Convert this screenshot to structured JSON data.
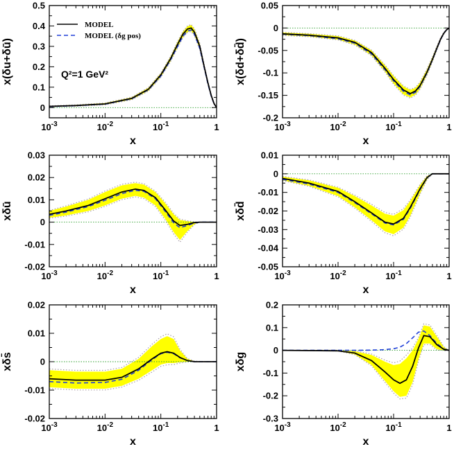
{
  "legend": {
    "model_label": "MODEL",
    "model_dgpos_label": "MODEL (δg pos)"
  },
  "annotation": "Q²=1 GeV²",
  "colors": {
    "band": "#ffff00",
    "model": "#000000",
    "model_dgpos": "#1f3fd8",
    "zero_line": "#2a9d2a",
    "band_edge": "#a59aa5"
  },
  "chart_data": [
    {
      "type": "line",
      "xlabel": "x",
      "ylabel": "x(δu+δū)",
      "xscale": "log",
      "xlim": [
        0.001,
        1
      ],
      "ylim": [
        -0.05,
        0.5
      ],
      "yticks": [
        "-0.1",
        "0",
        "0.1",
        "0.2",
        "0.3",
        "0.4",
        "0.5"
      ],
      "x": [
        0.001,
        0.003,
        0.01,
        0.03,
        0.06,
        0.1,
        0.15,
        0.2,
        0.25,
        0.3,
        0.35,
        0.4,
        0.5,
        0.6,
        0.7,
        0.8,
        0.9,
        1.0
      ],
      "series": [
        {
          "name": "MODEL",
          "values": [
            0.006,
            0.01,
            0.018,
            0.045,
            0.09,
            0.16,
            0.24,
            0.31,
            0.36,
            0.385,
            0.39,
            0.37,
            0.3,
            0.2,
            0.12,
            0.06,
            0.02,
            0.0
          ]
        },
        {
          "name": "MODEL (δg pos)",
          "values": [
            0.005,
            0.009,
            0.017,
            0.043,
            0.087,
            0.155,
            0.235,
            0.3,
            0.35,
            0.375,
            0.38,
            0.36,
            0.29,
            0.195,
            0.115,
            0.057,
            0.019,
            0.0
          ]
        }
      ],
      "band": {
        "upper": [
          0.008,
          0.013,
          0.022,
          0.05,
          0.097,
          0.168,
          0.25,
          0.322,
          0.372,
          0.398,
          0.405,
          0.385,
          0.313,
          0.21,
          0.126,
          0.064,
          0.022,
          0.0
        ],
        "lower": [
          0.004,
          0.007,
          0.014,
          0.039,
          0.082,
          0.15,
          0.228,
          0.295,
          0.345,
          0.37,
          0.375,
          0.355,
          0.286,
          0.19,
          0.113,
          0.056,
          0.018,
          0.0
        ]
      }
    },
    {
      "type": "line",
      "xlabel": "x",
      "ylabel": "x(δd+δd̄)",
      "xscale": "log",
      "xlim": [
        0.001,
        1
      ],
      "ylim": [
        -0.2,
        0.05
      ],
      "yticks": [
        "-0.2",
        "-0.15",
        "-0.1",
        "-0.05",
        "0",
        "0.05"
      ],
      "x": [
        0.001,
        0.003,
        0.01,
        0.02,
        0.04,
        0.07,
        0.1,
        0.15,
        0.2,
        0.25,
        0.3,
        0.4,
        0.5,
        0.6,
        0.7,
        0.8,
        0.9,
        1.0
      ],
      "series": [
        {
          "name": "MODEL",
          "values": [
            -0.013,
            -0.016,
            -0.022,
            -0.032,
            -0.055,
            -0.09,
            -0.115,
            -0.138,
            -0.146,
            -0.14,
            -0.128,
            -0.098,
            -0.07,
            -0.045,
            -0.025,
            -0.012,
            -0.004,
            0.0
          ]
        },
        {
          "name": "MODEL (δg pos)",
          "values": [
            -0.014,
            -0.017,
            -0.024,
            -0.034,
            -0.058,
            -0.093,
            -0.118,
            -0.141,
            -0.149,
            -0.143,
            -0.13,
            -0.1,
            -0.071,
            -0.046,
            -0.026,
            -0.012,
            -0.004,
            0.0
          ]
        }
      ],
      "band": {
        "upper": [
          -0.01,
          -0.013,
          -0.018,
          -0.028,
          -0.05,
          -0.083,
          -0.107,
          -0.13,
          -0.138,
          -0.133,
          -0.121,
          -0.092,
          -0.065,
          -0.041,
          -0.022,
          -0.01,
          -0.003,
          0.0
        ],
        "lower": [
          -0.016,
          -0.019,
          -0.026,
          -0.037,
          -0.061,
          -0.097,
          -0.124,
          -0.148,
          -0.155,
          -0.148,
          -0.135,
          -0.104,
          -0.075,
          -0.049,
          -0.028,
          -0.014,
          -0.005,
          0.0
        ]
      }
    },
    {
      "type": "line",
      "xlabel": "x",
      "ylabel": "xδū",
      "xscale": "log",
      "xlim": [
        0.001,
        1
      ],
      "ylim": [
        -0.02,
        0.03
      ],
      "yticks": [
        "-0.02",
        "-0.01",
        "0",
        "0.01",
        "0.02",
        "0.03"
      ],
      "x": [
        0.001,
        0.002,
        0.005,
        0.01,
        0.02,
        0.035,
        0.05,
        0.08,
        0.12,
        0.17,
        0.22,
        0.3,
        0.4,
        0.5,
        0.7,
        1.0
      ],
      "series": [
        {
          "name": "MODEL",
          "values": [
            0.0035,
            0.005,
            0.0075,
            0.0105,
            0.0135,
            0.0148,
            0.0142,
            0.011,
            0.0055,
            0.0005,
            -0.0015,
            -0.001,
            -0.0002,
            0.0,
            0.0,
            0.0
          ]
        },
        {
          "name": "MODEL (δg pos)",
          "values": [
            0.003,
            0.0045,
            0.007,
            0.0098,
            0.0128,
            0.0143,
            0.0138,
            0.0105,
            0.0048,
            -0.0003,
            -0.0025,
            -0.0015,
            -0.0004,
            0.0,
            0.0,
            0.0
          ]
        }
      ],
      "band": {
        "upper": [
          0.005,
          0.007,
          0.01,
          0.0135,
          0.0165,
          0.0175,
          0.0168,
          0.0135,
          0.0085,
          0.0035,
          0.001,
          0.0004,
          0.0001,
          0.0,
          0.0,
          0.0
        ],
        "lower": [
          0.002,
          0.003,
          0.005,
          0.0075,
          0.0105,
          0.0118,
          0.011,
          0.0075,
          0.0015,
          -0.0045,
          -0.008,
          -0.004,
          -0.001,
          0.0,
          0.0,
          0.0
        ]
      }
    },
    {
      "type": "line",
      "xlabel": "x",
      "ylabel": "xδd̄",
      "xscale": "log",
      "xlim": [
        0.001,
        1
      ],
      "ylim": [
        -0.05,
        0.01
      ],
      "yticks": [
        "-0.05",
        "-0.04",
        "-0.03",
        "-0.02",
        "-0.01",
        "0",
        "0.01"
      ],
      "x": [
        0.001,
        0.003,
        0.01,
        0.02,
        0.04,
        0.07,
        0.1,
        0.15,
        0.2,
        0.3,
        0.4,
        0.5,
        0.7,
        1.0
      ],
      "series": [
        {
          "name": "MODEL",
          "values": [
            -0.0025,
            -0.005,
            -0.0095,
            -0.015,
            -0.021,
            -0.026,
            -0.027,
            -0.024,
            -0.018,
            -0.008,
            -0.002,
            0.0,
            0.0,
            0.0
          ]
        },
        {
          "name": "MODEL (δg pos)",
          "values": [
            -0.003,
            -0.0055,
            -0.01,
            -0.0155,
            -0.0215,
            -0.0265,
            -0.0275,
            -0.0245,
            -0.0185,
            -0.0085,
            -0.0022,
            0.0,
            0.0,
            0.0
          ]
        }
      ],
      "band": {
        "upper": [
          -0.0015,
          -0.0035,
          -0.0075,
          -0.012,
          -0.017,
          -0.0215,
          -0.0225,
          -0.0195,
          -0.0145,
          -0.006,
          -0.0012,
          0.0,
          0.0,
          0.0
        ],
        "lower": [
          -0.0035,
          -0.0065,
          -0.012,
          -0.018,
          -0.025,
          -0.031,
          -0.0325,
          -0.029,
          -0.0225,
          -0.0105,
          -0.003,
          0.0,
          0.0,
          0.0
        ]
      }
    },
    {
      "type": "line",
      "xlabel": "x",
      "ylabel": "xδs̄",
      "xscale": "log",
      "xlim": [
        0.001,
        1
      ],
      "ylim": [
        -0.02,
        0.02
      ],
      "yticks": [
        "-0.02",
        "-0.01",
        "0",
        "0.01",
        "0.02"
      ],
      "x": [
        0.001,
        0.003,
        0.01,
        0.02,
        0.04,
        0.07,
        0.1,
        0.13,
        0.17,
        0.22,
        0.3,
        0.4,
        0.6,
        1.0
      ],
      "series": [
        {
          "name": "MODEL",
          "values": [
            -0.006,
            -0.0065,
            -0.0065,
            -0.0055,
            -0.0025,
            0.001,
            0.003,
            0.0035,
            0.003,
            0.0015,
            0.0004,
            0.0,
            0.0,
            0.0
          ]
        },
        {
          "name": "MODEL (δg pos)",
          "values": [
            -0.007,
            -0.0075,
            -0.0073,
            -0.0062,
            -0.003,
            0.0007,
            0.0028,
            0.0033,
            0.0028,
            0.0014,
            0.0004,
            0.0,
            0.0,
            0.0
          ]
        }
      ],
      "band": {
        "upper": [
          -0.003,
          -0.0035,
          -0.0035,
          -0.0025,
          0.001,
          0.0055,
          0.008,
          0.009,
          0.008,
          0.004,
          0.001,
          0.0002,
          0.0,
          0.0
        ],
        "lower": [
          -0.009,
          -0.0095,
          -0.0095,
          -0.0085,
          -0.006,
          -0.003,
          -0.001,
          -0.0005,
          -0.0005,
          -0.0002,
          0.0,
          0.0,
          0.0,
          0.0
        ]
      }
    },
    {
      "type": "line",
      "xlabel": "x",
      "ylabel": "xδg",
      "xscale": "log",
      "xlim": [
        0.001,
        1
      ],
      "ylim": [
        -0.3,
        0.2
      ],
      "yticks": [
        "-0.3",
        "-0.2",
        "-0.1",
        "0",
        "0.1",
        "0.2"
      ],
      "x": [
        0.001,
        0.01,
        0.02,
        0.04,
        0.07,
        0.1,
        0.13,
        0.17,
        0.22,
        0.28,
        0.35,
        0.45,
        0.6,
        0.8,
        1.0
      ],
      "series": [
        {
          "name": "MODEL",
          "values": [
            0.0,
            -0.002,
            -0.012,
            -0.045,
            -0.095,
            -0.13,
            -0.145,
            -0.13,
            -0.07,
            0.01,
            0.065,
            0.06,
            0.025,
            0.005,
            0.0
          ]
        },
        {
          "name": "MODEL (δg pos)",
          "values": [
            0.0,
            0.0,
            0.0,
            0.001,
            0.003,
            0.007,
            0.014,
            0.03,
            0.055,
            0.08,
            0.085,
            0.065,
            0.03,
            0.006,
            0.0
          ]
        }
      ],
      "band": {
        "upper": [
          0.0,
          0.0,
          -0.004,
          -0.02,
          -0.05,
          -0.065,
          -0.06,
          -0.035,
          0.0,
          0.05,
          0.11,
          0.105,
          0.06,
          0.015,
          0.0
        ],
        "lower": [
          0.0,
          -0.003,
          -0.018,
          -0.065,
          -0.135,
          -0.18,
          -0.205,
          -0.2,
          -0.14,
          -0.04,
          0.03,
          0.03,
          0.005,
          0.0,
          0.0
        ]
      }
    }
  ]
}
